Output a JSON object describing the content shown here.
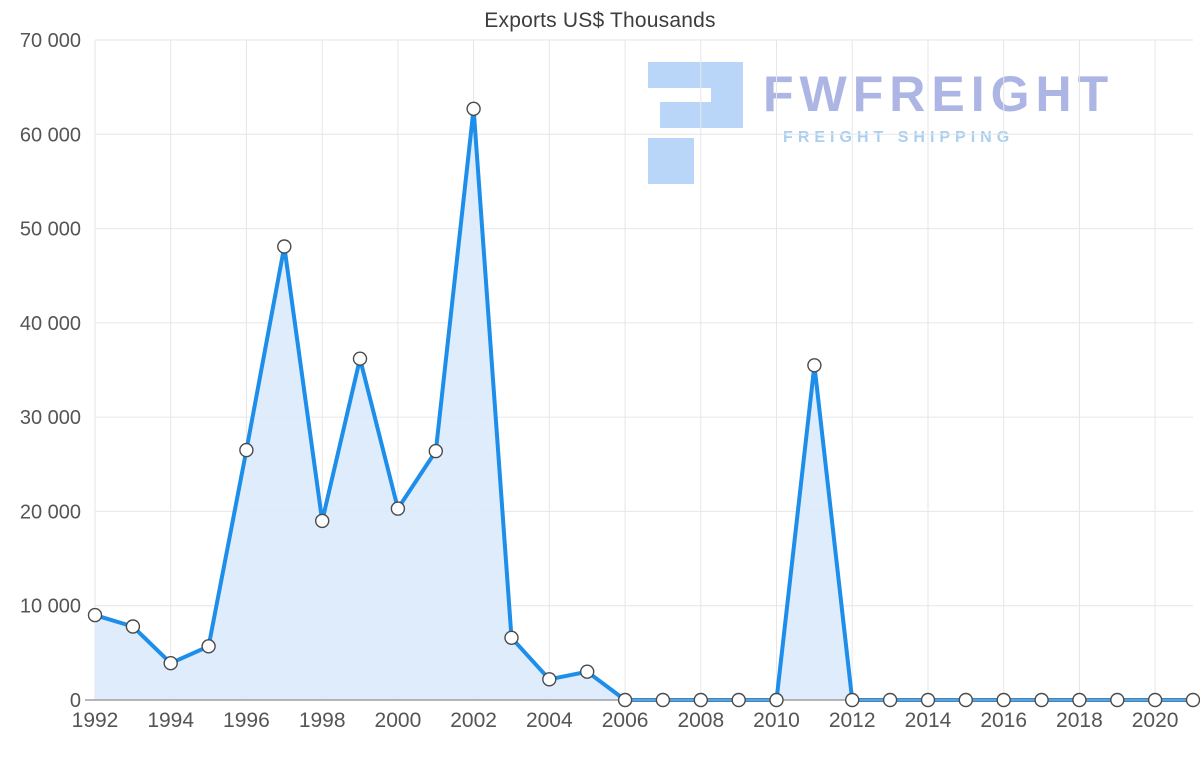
{
  "chart_data": {
    "type": "area",
    "title": "Exports US$ Thousands",
    "series_name": "Exports",
    "x": [
      1992,
      1993,
      1994,
      1995,
      1996,
      1997,
      1998,
      1999,
      2000,
      2001,
      2002,
      2003,
      2004,
      2005,
      2006,
      2007,
      2008,
      2009,
      2010,
      2011,
      2012,
      2013,
      2014,
      2015,
      2016,
      2017,
      2018,
      2019,
      2020,
      2021
    ],
    "values": [
      9000,
      7800,
      3900,
      5700,
      26500,
      48100,
      19000,
      36200,
      20300,
      26400,
      62700,
      6600,
      2200,
      3000,
      0,
      0,
      0,
      0,
      0,
      35500,
      0,
      0,
      0,
      0,
      0,
      0,
      0,
      0,
      0,
      0
    ],
    "ylim": [
      0,
      70000
    ],
    "ytick_values": [
      0,
      10000,
      20000,
      30000,
      40000,
      50000,
      60000,
      70000
    ],
    "ytick_labels": [
      "0",
      "10 000",
      "20 000",
      "30 000",
      "40 000",
      "50 000",
      "60 000",
      "70 000"
    ],
    "xtick_values": [
      1992,
      1994,
      1996,
      1998,
      2000,
      2002,
      2004,
      2006,
      2008,
      2010,
      2012,
      2014,
      2016,
      2018,
      2020
    ],
    "xtick_labels": [
      "1992",
      "1994",
      "1996",
      "1998",
      "2000",
      "2002",
      "2004",
      "2006",
      "2008",
      "2010",
      "2012",
      "2014",
      "2016",
      "2018",
      "2020"
    ],
    "grid": true,
    "legend": "none",
    "colors": {
      "line": "#1d8ee9",
      "fill": "#daeafc",
      "marker_fill": "#ffffff",
      "marker_stroke": "#4a4a4a",
      "grid": "#e6e6e6",
      "axis": "#9e9e9e",
      "text": "#555555",
      "title": "#3d3d3d"
    }
  },
  "watermark": {
    "name": "FWFREIGHT",
    "tagline": "FREIGHT SHIPPING",
    "colors": {
      "name": "#a9b2e4",
      "tagline": "#a5cdf1",
      "logo": "#b6d3f8"
    }
  }
}
